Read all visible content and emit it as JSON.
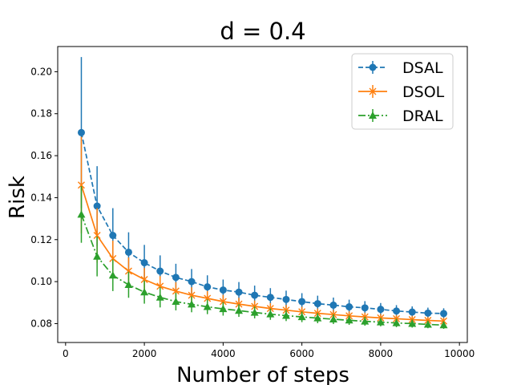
{
  "chart_data": {
    "type": "line",
    "title": "d = 0.4",
    "xlabel": "Number of steps",
    "ylabel": "Risk",
    "xlim": [
      -200,
      10200
    ],
    "ylim": [
      0.071,
      0.212
    ],
    "xticks": [
      0,
      2000,
      4000,
      6000,
      8000,
      10000
    ],
    "xtick_labels": [
      "0",
      "2000",
      "4000",
      "6000",
      "8000",
      "10000"
    ],
    "yticks": [
      0.08,
      0.1,
      0.12,
      0.14,
      0.16,
      0.18,
      0.2
    ],
    "ytick_labels": [
      "0.08",
      "0.10",
      "0.12",
      "0.14",
      "0.16",
      "0.18",
      "0.20"
    ],
    "grid": false,
    "legend_position": "top-right",
    "x": [
      400,
      800,
      1200,
      1600,
      2000,
      2400,
      2800,
      3200,
      3600,
      4000,
      4400,
      4800,
      5200,
      5600,
      6000,
      6400,
      6800,
      7200,
      7600,
      8000,
      8400,
      8800,
      9200,
      9600
    ],
    "series": [
      {
        "name": "DSAL",
        "color": "#1f77b4",
        "marker": "circle",
        "linestyle": "dashed",
        "values": [
          0.171,
          0.136,
          0.122,
          0.114,
          0.109,
          0.105,
          0.102,
          0.1,
          0.0975,
          0.096,
          0.095,
          0.0935,
          0.0925,
          0.0915,
          0.0905,
          0.0895,
          0.0888,
          0.088,
          0.0875,
          0.0868,
          0.086,
          0.0855,
          0.085,
          0.0848
        ],
        "err": [
          0.036,
          0.019,
          0.013,
          0.0095,
          0.0085,
          0.0075,
          0.0065,
          0.006,
          0.0055,
          0.005,
          0.0048,
          0.0046,
          0.0044,
          0.0042,
          0.004,
          0.0038,
          0.0036,
          0.0034,
          0.0032,
          0.003,
          0.0028,
          0.0027,
          0.0026,
          0.0025
        ]
      },
      {
        "name": "DSOL",
        "color": "#ff7f0e",
        "marker": "x",
        "linestyle": "solid",
        "values": [
          0.146,
          0.122,
          0.111,
          0.105,
          0.101,
          0.0978,
          0.0955,
          0.0935,
          0.092,
          0.0905,
          0.0893,
          0.0882,
          0.0872,
          0.0864,
          0.0856,
          0.0849,
          0.0843,
          0.0837,
          0.0832,
          0.0827,
          0.0823,
          0.0819,
          0.0815,
          0.0812
        ],
        "err": [
          0.023,
          0.013,
          0.0085,
          0.0065,
          0.0055,
          0.0048,
          0.0042,
          0.0038,
          0.0035,
          0.0032,
          0.003,
          0.0028,
          0.0026,
          0.0025,
          0.0024,
          0.0023,
          0.0022,
          0.0021,
          0.002,
          0.0019,
          0.0018,
          0.0018,
          0.0017,
          0.0016
        ]
      },
      {
        "name": "DRAL",
        "color": "#2ca02c",
        "marker": "triangle",
        "linestyle": "dashdot",
        "values": [
          0.132,
          0.112,
          0.103,
          0.0985,
          0.095,
          0.0925,
          0.0905,
          0.0892,
          0.088,
          0.087,
          0.0862,
          0.0853,
          0.0845,
          0.0838,
          0.0832,
          0.0826,
          0.0821,
          0.0816,
          0.0811,
          0.0807,
          0.0803,
          0.08,
          0.0796,
          0.0793
        ],
        "err": [
          0.0135,
          0.0095,
          0.0075,
          0.0062,
          0.0055,
          0.0048,
          0.0042,
          0.0038,
          0.0035,
          0.0032,
          0.003,
          0.0028,
          0.0027,
          0.0026,
          0.0025,
          0.0024,
          0.0023,
          0.0022,
          0.0021,
          0.002,
          0.002,
          0.0019,
          0.0018,
          0.0018
        ]
      }
    ]
  }
}
